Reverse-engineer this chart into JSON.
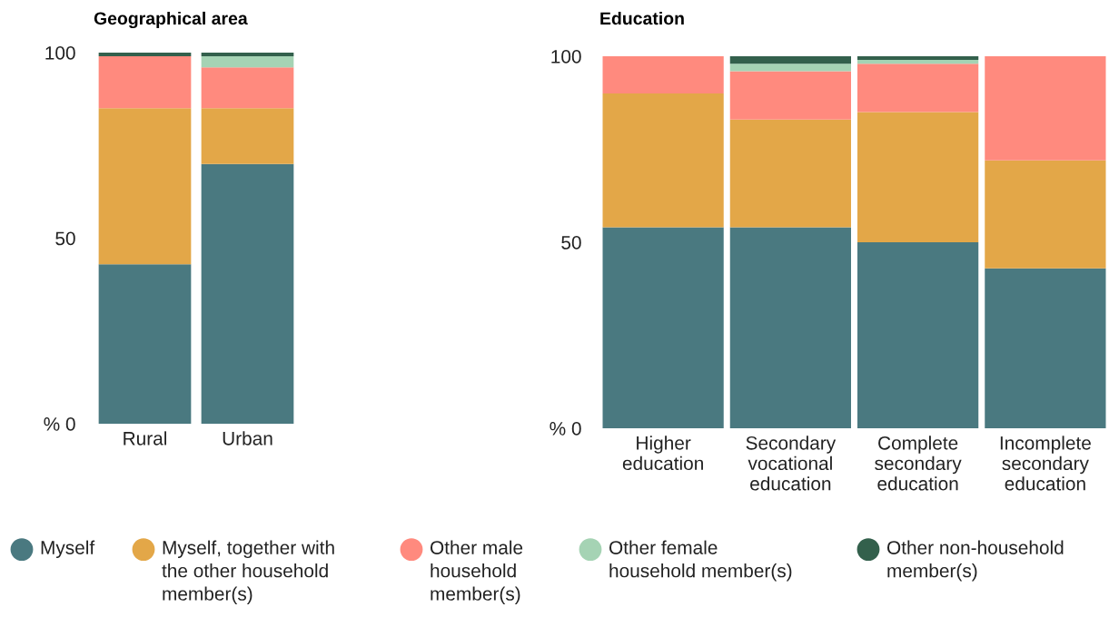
{
  "chart_data": [
    {
      "type": "bar",
      "title": "Geographical area",
      "stacked": true,
      "categories": [
        "Rural",
        "Urban"
      ],
      "ylim": [
        0,
        100
      ],
      "yticks": [
        {
          "value": 0,
          "label": "% 0"
        },
        50,
        100
      ],
      "grid": false,
      "legend": "bottom",
      "series": [
        {
          "name": "Myself",
          "color": "#4a7980",
          "values": [
            43,
            70
          ]
        },
        {
          "name": "Myself, together with the other household member(s)",
          "color": "#e3a748",
          "values": [
            42,
            15
          ]
        },
        {
          "name": "Other male household member(s)",
          "color": "#ff8a7e",
          "values": [
            14,
            11
          ]
        },
        {
          "name": "Other female household member(s)",
          "color": "#a5d3b4",
          "values": [
            0,
            3
          ]
        },
        {
          "name": "Other non-household member(s)",
          "color": "#33604c",
          "values": [
            1,
            1
          ]
        }
      ]
    },
    {
      "type": "bar",
      "title": "Education",
      "stacked": true,
      "categories": [
        "Higher education",
        "Secondary vocational education",
        "Complete secondary education",
        "Incomplete secondary education"
      ],
      "ylim": [
        0,
        100
      ],
      "yticks": [
        {
          "value": 0,
          "label": "% 0"
        },
        50,
        100
      ],
      "grid": false,
      "series": [
        {
          "color": "#4a7980",
          "values": [
            54,
            54,
            50,
            43
          ]
        },
        {
          "color": "#e3a748",
          "values": [
            36,
            29,
            35,
            29
          ]
        },
        {
          "color": "#ff8a7e",
          "values": [
            10,
            13,
            13,
            28
          ]
        },
        {
          "color": "#a5d3b4",
          "values": [
            0,
            2,
            1,
            0
          ]
        },
        {
          "color": "#33604c",
          "values": [
            0,
            2,
            1,
            0
          ]
        }
      ]
    }
  ]
}
